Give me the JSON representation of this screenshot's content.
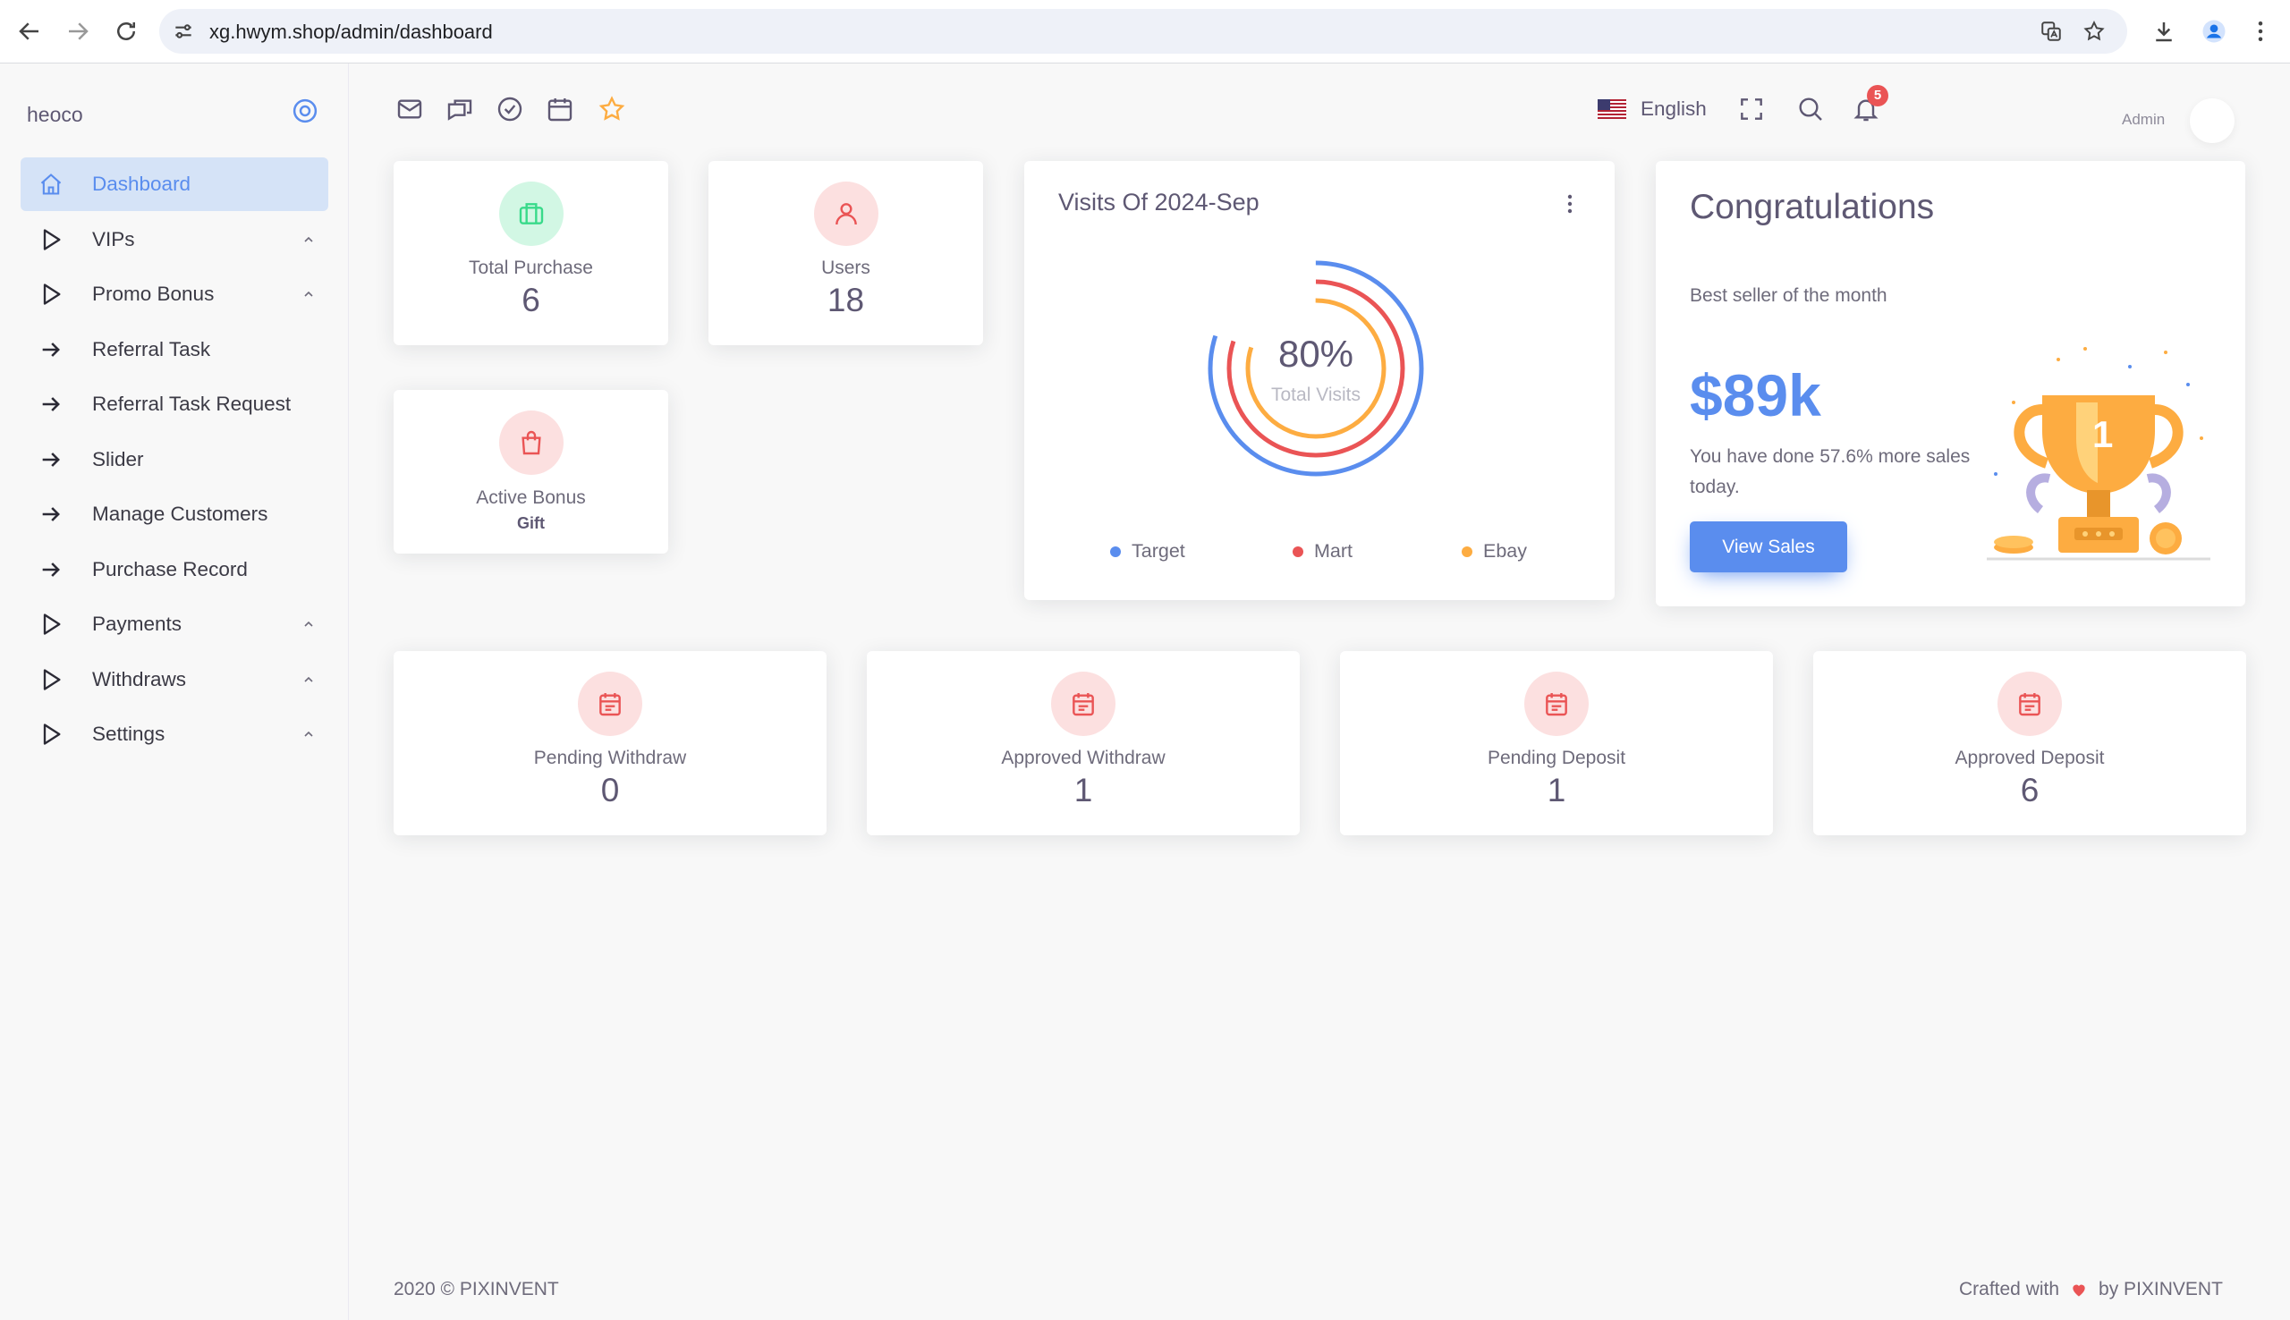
{
  "browser": {
    "url": "xg.hwym.shop/admin/dashboard"
  },
  "sidebar": {
    "brand": "heoco",
    "items": [
      {
        "label": "Dashboard",
        "icon": "home-icon",
        "active": true,
        "expandable": false
      },
      {
        "label": "VIPs",
        "icon": "play-icon",
        "active": false,
        "expandable": true
      },
      {
        "label": "Promo Bonus",
        "icon": "play-icon",
        "active": false,
        "expandable": true
      },
      {
        "label": "Referral Task",
        "icon": "arrow-right-icon",
        "active": false,
        "expandable": false
      },
      {
        "label": "Referral Task Request",
        "icon": "arrow-right-icon",
        "active": false,
        "expandable": false
      },
      {
        "label": "Slider",
        "icon": "arrow-right-icon",
        "active": false,
        "expandable": false
      },
      {
        "label": "Manage Customers",
        "icon": "arrow-right-icon",
        "active": false,
        "expandable": false
      },
      {
        "label": "Purchase Record",
        "icon": "arrow-right-icon",
        "active": false,
        "expandable": false
      },
      {
        "label": "Payments",
        "icon": "play-icon",
        "active": false,
        "expandable": true
      },
      {
        "label": "Withdraws",
        "icon": "play-icon",
        "active": false,
        "expandable": true
      },
      {
        "label": "Settings",
        "icon": "play-icon",
        "active": false,
        "expandable": true
      }
    ]
  },
  "header": {
    "language": "English",
    "notification_count": "5",
    "user_name": "Admin"
  },
  "stats": {
    "total_purchase": {
      "label": "Total Purchase",
      "value": "6"
    },
    "users": {
      "label": "Users",
      "value": "18"
    },
    "active_bonus": {
      "label": "Active Bonus",
      "value": "Gift"
    },
    "pending_withdraw": {
      "label": "Pending Withdraw",
      "value": "0"
    },
    "approved_withdraw": {
      "label": "Approved Withdraw",
      "value": "1"
    },
    "pending_deposit": {
      "label": "Pending Deposit",
      "value": "1"
    },
    "approved_deposit": {
      "label": "Approved Deposit",
      "value": "6"
    }
  },
  "visits": {
    "title": "Visits Of 2024-Sep",
    "percent": "80%",
    "caption": "Total Visits",
    "legend": [
      {
        "name": "Target",
        "color": "#5a8dee"
      },
      {
        "name": "Mart",
        "color": "#ea5455"
      },
      {
        "name": "Ebay",
        "color": "#fdac41"
      }
    ]
  },
  "congrats": {
    "title": "Congratulations",
    "subtitle": "Best seller of the month",
    "amount": "$89k",
    "text": "You have done 57.6% more sales today.",
    "trophy_number": "1",
    "button": "View Sales"
  },
  "footer": {
    "left": "2020 © PIXINVENT",
    "crafted": "Crafted with",
    "by": "by PIXINVENT"
  },
  "colors": {
    "primary": "#5a8dee",
    "danger": "#ea5455",
    "warning": "#fdac41",
    "success": "#39da8a"
  }
}
